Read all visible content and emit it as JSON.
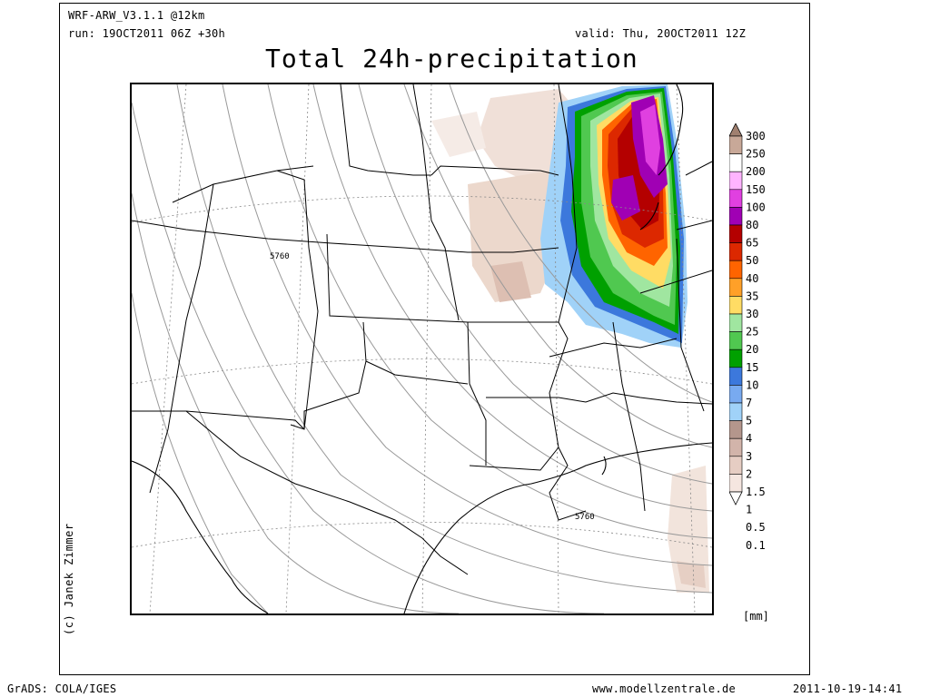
{
  "header": {
    "model": "WRF-ARW_V3.1.1 @12km",
    "run": "run: 19OCT2011 06Z +30h",
    "valid": "valid: Thu, 20OCT2011 12Z"
  },
  "title": "Total 24h-precipitation",
  "map": {
    "contour_label_1": "5760",
    "contour_label_2": "5760"
  },
  "credit": "(c) Janek Zimmer",
  "legend": {
    "unit": "[mm]",
    "labels": [
      "300",
      "250",
      "200",
      "150",
      "100",
      "80",
      "65",
      "50",
      "40",
      "35",
      "30",
      "25",
      "20",
      "15",
      "10",
      "7",
      "5",
      "4",
      "3",
      "2",
      "1.5",
      "1",
      "0.5",
      "0.1"
    ],
    "colors": [
      "#a08070",
      "#c8a898",
      "#ffffff",
      "#ffb4ff",
      "#e040e0",
      "#a000b4",
      "#b40000",
      "#dc2800",
      "#ff6400",
      "#ffa028",
      "#ffdc64",
      "#a0e6a0",
      "#50c850",
      "#00a000",
      "#3c78dc",
      "#78aaf0",
      "#a0d2f8",
      "#b4968c",
      "#d2b4aa",
      "#e6cdc3",
      "#f5e6e0",
      "#ffffff"
    ]
  },
  "footer": {
    "left": "GrADS: COLA/IGES",
    "center": "www.modellzentrale.de",
    "right": "2011-10-19-14:41"
  }
}
